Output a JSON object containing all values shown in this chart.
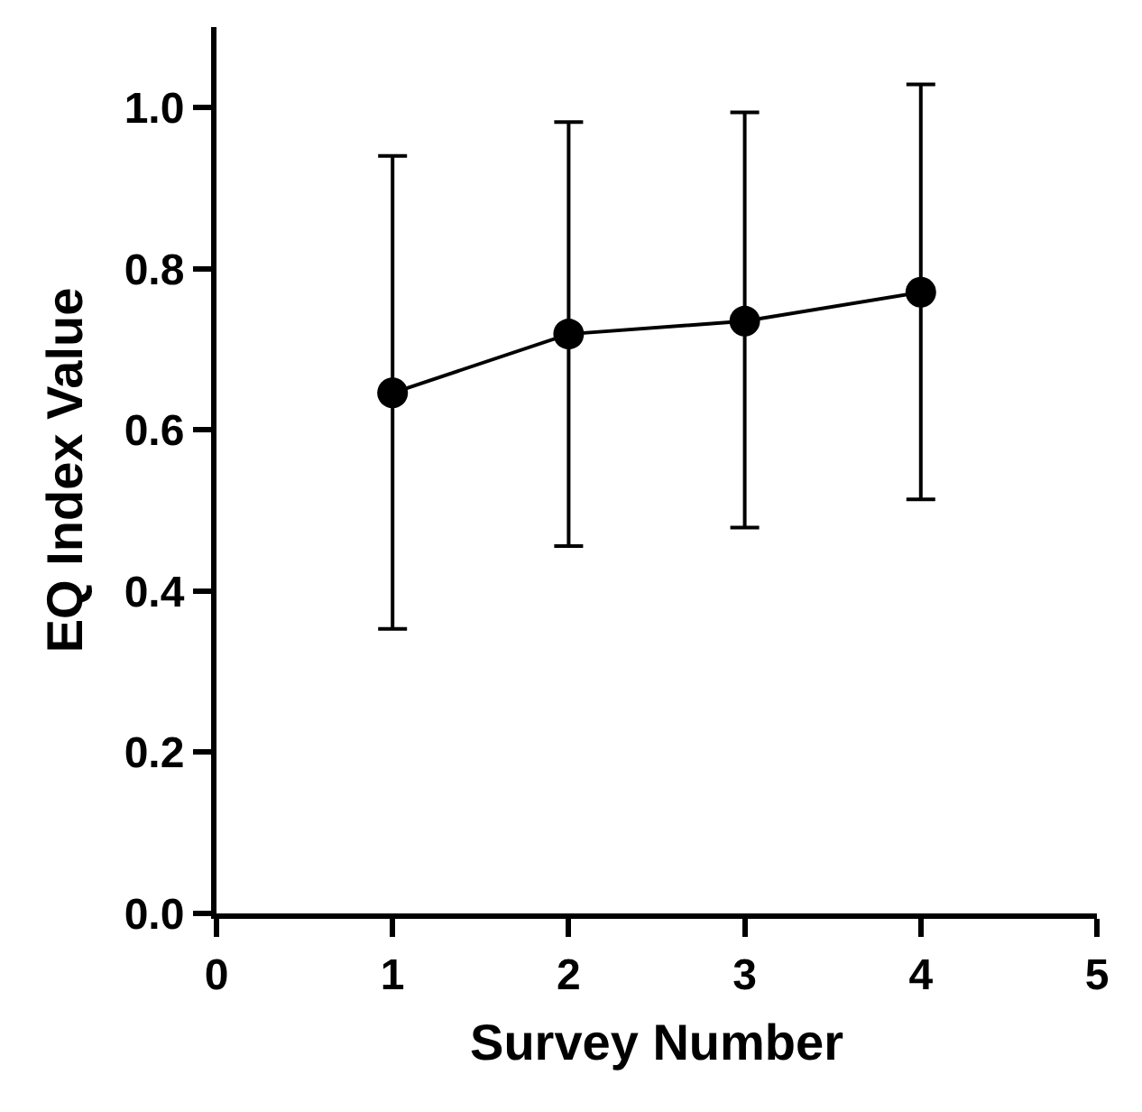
{
  "chart_data": {
    "type": "line",
    "xlabel": "Survey Number",
    "ylabel": "EQ Index Value",
    "x": [
      1,
      2,
      3,
      4
    ],
    "series": [
      {
        "color": "#000000",
        "values": [
          0.646,
          0.719,
          0.735,
          0.771
        ],
        "errors": [
          [
            0.353,
            0.94
          ],
          [
            0.456,
            0.982
          ],
          [
            0.479,
            0.994
          ],
          [
            0.514,
            1.029
          ]
        ]
      }
    ],
    "xlim": [
      0,
      5
    ],
    "xticks": [
      0,
      1,
      2,
      3,
      4,
      5
    ],
    "ylim": [
      0,
      1.1
    ],
    "yticks": [
      {
        "value": 0,
        "label": "0.0"
      },
      {
        "value": 0.2,
        "label": "0.2"
      },
      {
        "value": 0.4,
        "label": "0.4"
      },
      {
        "value": 0.6,
        "label": "0.6"
      },
      {
        "value": 0.8,
        "label": "0.8"
      },
      {
        "value": 1.0,
        "label": "1.0"
      }
    ],
    "marker": "circle",
    "line_style": "solid"
  }
}
